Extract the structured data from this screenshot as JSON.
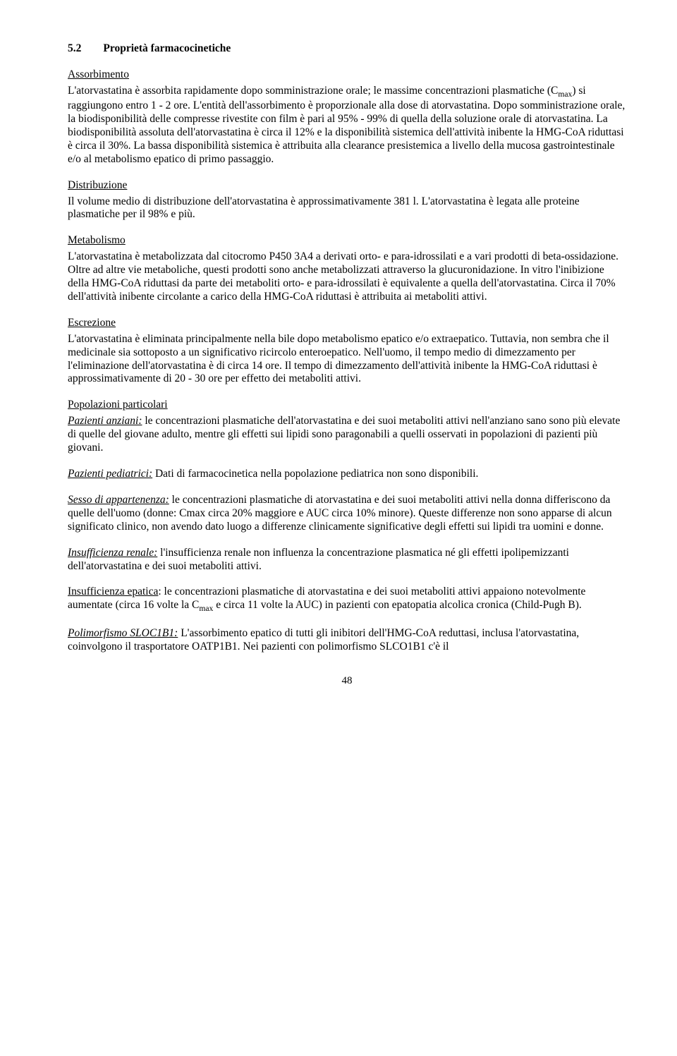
{
  "section": {
    "num": "5.2",
    "title": "Proprietà farmacocinetiche"
  },
  "absorption": {
    "heading": "Assorbimento",
    "p1a": "L'atorvastatina è assorbita rapidamente dopo somministrazione orale; le massime concentrazioni plasmatiche (C",
    "p1sub": "max",
    "p1b": ") si raggiungono entro 1 - 2 ore. L'entità dell'assorbimento è proporzionale alla dose di atorvastatina. Dopo somministrazione orale, la biodisponibilità delle compresse rivestite con film è pari al 95% - 99% di quella della soluzione orale di atorvastatina. La biodisponibilità assoluta dell'atorvastatina è circa il 12% e la disponibilità sistemica dell'attività inibente la HMG-CoA riduttasi è circa il 30%. La bassa disponibilità sistemica è attribuita alla clearance presistemica a livello della mucosa gastrointestinale e/o al metabolismo epatico di primo passaggio."
  },
  "distribution": {
    "heading": "Distribuzione",
    "p1": "Il volume medio di distribuzione dell'atorvastatina è approssimativamente 381 l. L'atorvastatina è legata alle proteine plasmatiche per il 98% e più."
  },
  "metabolism": {
    "heading": "Metabolismo",
    "p1": "L'atorvastatina è metabolizzata dal citocromo P450 3A4 a derivati orto- e para-idrossilati e a vari prodotti di beta-ossidazione. Oltre ad altre vie metaboliche, questi prodotti sono anche metabolizzati attraverso la glucuronidazione. In vitro l'inibizione della HMG-CoA riduttasi da parte dei metaboliti orto- e para-idrossilati è equivalente a quella dell'atorvastatina. Circa il 70% dell'attività inibente circolante a carico della HMG-CoA riduttasi è attribuita ai metaboliti attivi."
  },
  "excretion": {
    "heading": "Escrezione",
    "p1": "L'atorvastatina è eliminata principalmente nella bile dopo metabolismo epatico e/o extraepatico. Tuttavia, non sembra che il medicinale sia sottoposto a un significativo ricircolo enteroepatico. Nell'uomo, il tempo medio di dimezzamento per l'eliminazione dell'atorvastatina è di circa 14 ore. Il tempo di dimezzamento dell'attività inibente la HMG-CoA riduttasi è approssimativamente di 20 - 30 ore per effetto dei metaboliti attivi."
  },
  "populations": {
    "heading": "Popolazioni particolari",
    "elderly_label": "Pazienti anziani:",
    "elderly_text": "  le concentrazioni plasmatiche dell'atorvastatina e dei suoi metaboliti attivi nell'anziano sano sono più elevate di quelle del giovane adulto, mentre gli effetti sui lipidi sono paragonabili a quelli osservati in popolazioni di pazienti più giovani.",
    "pediatric_label": "Pazienti pediatrici:",
    "pediatric_text": " Dati di farmacocinetica nella popolazione pediatrica non sono disponibili.",
    "sex_label": "Sesso di appartenenza:",
    "sex_text": "  le concentrazioni plasmatiche di atorvastatina e dei suoi metaboliti attivi nella donna differiscono da quelle dell'uomo (donne: Cmax circa 20% maggiore e AUC circa 10% minore). Queste differenze non sono apparse di alcun significato clinico, non avendo dato luogo a differenze clinicamente significative degli effetti sui lipidi tra uomini e donne.",
    "renal_label": "Insufficienza renale:",
    "renal_text": " l'insufficienza renale non influenza la concentrazione plasmatica né gli effetti ipolipemizzanti dell'atorvastatina e dei suoi metaboliti attivi.",
    "hepatic_label": "Insufficienza epatica",
    "hepatic_a": ": le concentrazioni plasmatiche di atorvastatina e dei suoi metaboliti attivi appaiono notevolmente aumentate (circa 16 volte la C",
    "hepatic_sub": "max",
    "hepatic_b": " e circa 11 volte la AUC) in pazienti con epatopatia alcolica cronica (Child-Pugh B).",
    "poly_label": "Polimorfismo SLOC1B1:",
    "poly_text": " L'assorbimento epatico di tutti gli inibitori dell'HMG-CoA reduttasi, inclusa l'atorvastatina, coinvolgono il trasportatore OATP1B1. Nei pazienti con polimorfismo SLCO1B1 c'è il"
  },
  "pagenum": "48"
}
